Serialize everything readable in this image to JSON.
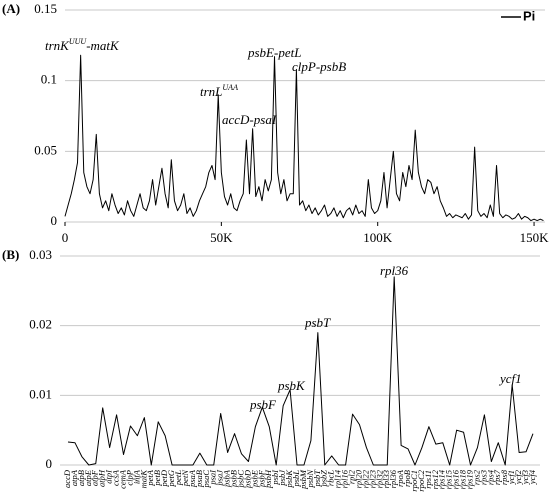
{
  "chart_data": [
    {
      "type": "line",
      "panel": "(A)",
      "legend": "upper right",
      "series": [
        {
          "name": "Pi",
          "color": "#000000"
        }
      ],
      "annotations": [
        {
          "text": "trnK",
          "sup": "UUU",
          "suffix": "-matK"
        },
        {
          "text": "trnL",
          "sup": "UAA"
        },
        {
          "text": "accD-psaI"
        },
        {
          "text": "psbE-petL"
        },
        {
          "text": "clpP-psbB"
        }
      ],
      "x": [
        0,
        1000,
        2000,
        3000,
        4000,
        5000,
        6000,
        7000,
        8000,
        9000,
        10000,
        11000,
        12000,
        13000,
        14000,
        15000,
        16000,
        17000,
        18000,
        19000,
        20000,
        21000,
        22000,
        23000,
        24000,
        25000,
        26000,
        27000,
        28000,
        29000,
        30000,
        31000,
        32000,
        33000,
        34000,
        35000,
        36000,
        37000,
        38000,
        39000,
        40000,
        41000,
        42000,
        43000,
        44000,
        45000,
        46000,
        47000,
        48000,
        49000,
        50000,
        51000,
        52000,
        53000,
        54000,
        55000,
        56000,
        57000,
        58000,
        59000,
        60000,
        61000,
        62000,
        63000,
        64000,
        65000,
        66000,
        67000,
        68000,
        69000,
        70000,
        71000,
        72000,
        73000,
        74000,
        75000,
        76000,
        77000,
        78000,
        79000,
        80000,
        81000,
        82000,
        83000,
        84000,
        85000,
        86000,
        87000,
        88000,
        89000,
        90000,
        91000,
        92000,
        93000,
        94000,
        95000,
        96000,
        97000,
        98000,
        99000,
        100000,
        101000,
        102000,
        103000,
        104000,
        105000,
        106000,
        107000,
        108000,
        109000,
        110000,
        111000,
        112000,
        113000,
        114000,
        115000,
        116000,
        117000,
        118000,
        119000,
        120000,
        121000,
        122000,
        123000,
        124000,
        125000,
        126000,
        127000,
        128000,
        129000,
        130000,
        131000,
        132000,
        133000,
        134000,
        135000,
        136000,
        137000,
        138000,
        139000,
        140000,
        141000,
        142000,
        143000,
        144000,
        145000,
        146000,
        147000,
        148000,
        149000,
        150000,
        151000,
        152000,
        153000
      ],
      "values": [
        0.004,
        0.012,
        0.02,
        0.03,
        0.042,
        0.118,
        0.035,
        0.025,
        0.02,
        0.03,
        0.062,
        0.02,
        0.01,
        0.015,
        0.008,
        0.02,
        0.012,
        0.006,
        0.01,
        0.005,
        0.015,
        0.008,
        0.004,
        0.012,
        0.02,
        0.01,
        0.008,
        0.015,
        0.03,
        0.012,
        0.025,
        0.038,
        0.02,
        0.01,
        0.044,
        0.015,
        0.008,
        0.012,
        0.02,
        0.006,
        0.01,
        0.004,
        0.008,
        0.015,
        0.02,
        0.025,
        0.035,
        0.04,
        0.03,
        0.09,
        0.035,
        0.018,
        0.012,
        0.02,
        0.01,
        0.008,
        0.015,
        0.02,
        0.058,
        0.02,
        0.066,
        0.018,
        0.025,
        0.015,
        0.03,
        0.022,
        0.03,
        0.117,
        0.035,
        0.02,
        0.03,
        0.015,
        0.02,
        0.02,
        0.108,
        0.012,
        0.015,
        0.008,
        0.012,
        0.006,
        0.01,
        0.005,
        0.008,
        0.012,
        0.004,
        0.006,
        0.01,
        0.004,
        0.008,
        0.003,
        0.008,
        0.01,
        0.005,
        0.012,
        0.006,
        0.008,
        0.004,
        0.03,
        0.01,
        0.006,
        0.008,
        0.015,
        0.035,
        0.01,
        0.03,
        0.05,
        0.02,
        0.015,
        0.035,
        0.025,
        0.04,
        0.03,
        0.065,
        0.035,
        0.025,
        0.02,
        0.03,
        0.028,
        0.02,
        0.025,
        0.015,
        0.01,
        0.004,
        0.006,
        0.003,
        0.005,
        0.004,
        0.003,
        0.006,
        0.002,
        0.005,
        0.053,
        0.008,
        0.004,
        0.006,
        0.003,
        0.012,
        0.004,
        0.04,
        0.006,
        0.003,
        0.005,
        0.004,
        0.002,
        0.003,
        0.006,
        0.002,
        0.004,
        0.003,
        0.001,
        0.002,
        0.001,
        0.002,
        0.001
      ],
      "xlim": [
        0,
        153500
      ],
      "xticks": [
        0,
        {
          "value": 50000,
          "label": "50K"
        },
        {
          "value": 100000,
          "label": "100K"
        },
        {
          "value": 150000,
          "label": "150K"
        }
      ],
      "ylim": [
        0,
        0.15
      ],
      "yticks": [
        0,
        0.05,
        0.1,
        0.15
      ],
      "grid": true
    },
    {
      "type": "line",
      "panel": "(B)",
      "color": "#000000",
      "annotations": [
        {
          "text": "psbF"
        },
        {
          "text": "psbK"
        },
        {
          "text": "psbT"
        },
        {
          "text": "rpl36"
        },
        {
          "text": "ycf1"
        }
      ],
      "categories": [
        "accD",
        "atpA",
        "atpB",
        "atpE",
        "atpF",
        "atpH",
        "atpI",
        "ccsA",
        "cemA",
        "clpP",
        "infA",
        "matK",
        "petA",
        "petB",
        "petD",
        "petG",
        "petL",
        "petN",
        "psaA",
        "psaB",
        "psaC",
        "psaI",
        "psaJ",
        "psbA",
        "psbB",
        "psbC",
        "psbD",
        "psbE",
        "psbF",
        "psbH",
        "psbI",
        "psbJ",
        "psbK",
        "psbL",
        "psbM",
        "psbN",
        "psbT",
        "psbZ",
        "rbcL",
        "rpl14",
        "rpl16",
        "rpl2",
        "rpl20",
        "rpl22",
        "rpl23",
        "rpl32",
        "rpl33",
        "rpl36",
        "rpoA",
        "rpoB",
        "rpoC1",
        "rpoC2",
        "rps11",
        "rps12",
        "rps14",
        "rps15",
        "rps16",
        "rps18",
        "rps19",
        "rps2",
        "rps3",
        "rps4",
        "rps7",
        "rps8",
        "ycf1",
        "ycf2",
        "ycf3",
        "ycf4"
      ],
      "values": [
        0.0033,
        0.0032,
        0.0012,
        0,
        0.0002,
        0.0082,
        0.0025,
        0.0072,
        0.0015,
        0.0056,
        0.0042,
        0.0068,
        0,
        0.0062,
        0.0042,
        0,
        0,
        0,
        0,
        0.0017,
        0,
        0,
        0.0074,
        0.0018,
        0.0045,
        0.0016,
        0.0005,
        0.0055,
        0.0083,
        0.0055,
        0,
        0.0085,
        0.0108,
        0,
        0,
        0.0035,
        0.019,
        0,
        0.0013,
        0,
        0,
        0.0073,
        0.0058,
        0.0025,
        0,
        0,
        0,
        0.027,
        0.0028,
        0.0023,
        0,
        0.0025,
        0.0055,
        0.003,
        0.0032,
        0,
        0.005,
        0.0047,
        0,
        0.0025,
        0.0072,
        0.0005,
        0.0032,
        0,
        0.0115,
        0.0018,
        0.0019,
        0.0045
      ],
      "ylim": [
        0,
        0.03
      ],
      "yticks": [
        0,
        0.01,
        0.02,
        0.03
      ],
      "grid": true
    }
  ]
}
